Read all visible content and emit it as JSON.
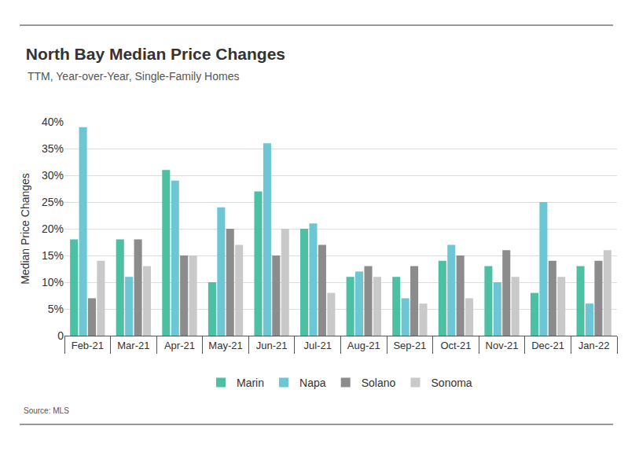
{
  "chart_data": {
    "type": "bar",
    "title": "North Bay Median Price Changes",
    "subtitle": "TTM, Year-over-Year, Single-Family Homes",
    "y_label": "Median Price Changes",
    "source": "Source: MLS",
    "categories": [
      "Feb-21",
      "Mar-21",
      "Apr-21",
      "May-21",
      "Jun-21",
      "Jul-21",
      "Aug-21",
      "Sep-21",
      "Oct-21",
      "Nov-21",
      "Dec-21",
      "Jan-22"
    ],
    "series": [
      {
        "name": "Marin",
        "color": "#4dbfa3",
        "values": [
          18,
          18,
          31,
          10,
          27,
          20,
          11,
          11,
          14,
          13,
          8,
          13
        ]
      },
      {
        "name": "Napa",
        "color": "#6cc6d3",
        "values": [
          39,
          11,
          29,
          24,
          36,
          21,
          12,
          7,
          17,
          10,
          25,
          6
        ]
      },
      {
        "name": "Solano",
        "color": "#8c8c8c",
        "values": [
          7,
          18,
          15,
          20,
          15,
          17,
          13,
          13,
          15,
          16,
          14,
          14
        ]
      },
      {
        "name": "Sonoma",
        "color": "#c9c9c9",
        "values": [
          14,
          13,
          15,
          17,
          20,
          8,
          11,
          6,
          7,
          11,
          11,
          16
        ]
      }
    ],
    "ylim": [
      0,
      40
    ],
    "yticks": [
      0,
      {
        "value": 5,
        "label": "5%"
      },
      {
        "value": 10,
        "label": "10%"
      },
      {
        "value": 15,
        "label": "15%"
      },
      {
        "value": 20,
        "label": "20%"
      },
      {
        "value": 25,
        "label": "25%"
      },
      {
        "value": 30,
        "label": "30%"
      },
      {
        "value": 35,
        "label": "35%"
      },
      {
        "value": 40,
        "label": "40%"
      }
    ],
    "grid": true,
    "legend": "bottom"
  }
}
